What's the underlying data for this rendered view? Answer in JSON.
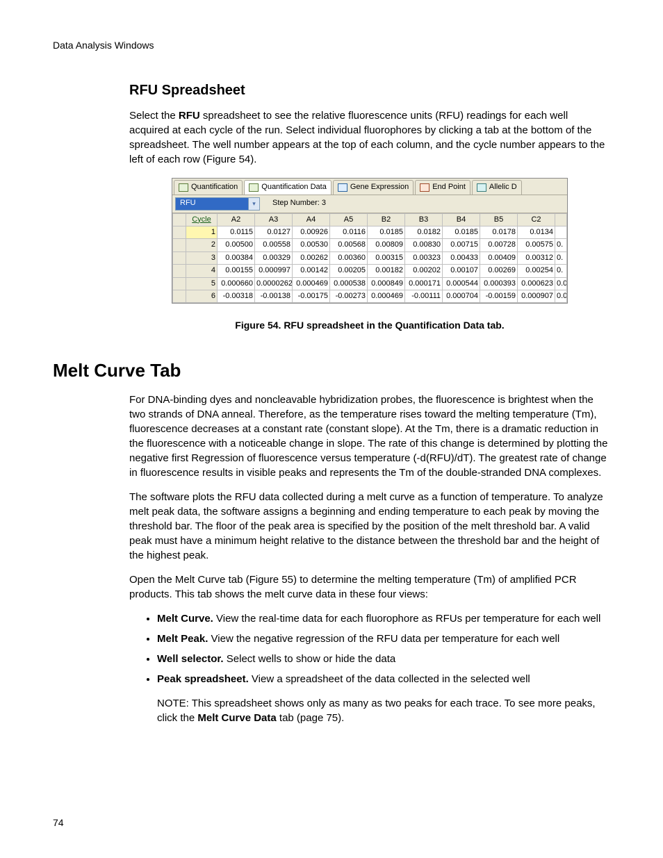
{
  "running_head": "Data Analysis Windows",
  "page_number": "74",
  "sec1_title": "RFU Spreadsheet",
  "sec1_p1_a": "Select the ",
  "sec1_p1_b": "RFU",
  "sec1_p1_c": " spreadsheet to see the relative fluorescence units (RFU) readings for each well acquired at each cycle of the run. Select individual fluorophores by clicking a tab at the bottom of the spreadsheet. The well number appears at the top of each column, and the cycle number appears to the left of each row (Figure 54).",
  "fig54_caption": "Figure 54. RFU spreadsheet in the Quantification Data tab.",
  "sec2_title": "Melt Curve Tab",
  "sec2_p1": "For DNA-binding dyes and noncleavable hybridization probes, the fluorescence is brightest when the two strands of DNA anneal. Therefore, as the temperature rises toward the melting temperature (Tm), fluorescence decreases at a constant rate (constant slope). At the Tm, there is a dramatic reduction in the fluorescence with a noticeable change in slope. The rate of this change is determined by plotting the negative first Regression of fluorescence versus temperature (-d(RFU)/dT). The greatest rate of change in fluorescence results in visible peaks and represents the Tm of the double-stranded DNA complexes.",
  "sec2_p2": "The software plots the RFU data collected during a melt curve as a function of temperature. To analyze melt peak data, the software assigns a beginning and ending temperature to each peak by moving the threshold bar. The floor of the peak area is specified by the position of the melt threshold bar. A valid peak must have a minimum height relative to the distance between the threshold bar and the height of the highest peak.",
  "sec2_p3": "Open the Melt Curve tab (Figure 55) to determine the melting temperature (Tm) of amplified PCR products. This tab shows the melt curve data in these four views:",
  "b1_head": "Melt Curve.",
  "b1_tail": " View the real-time data for each fluorophore as RFUs per temperature for each well",
  "b2_head": "Melt Peak.",
  "b2_tail": " View the negative regression of the RFU data per temperature for each well",
  "b3_head": "Well selector.",
  "b3_tail": " Select wells to show or hide the data",
  "b4_head": "Peak spreadsheet.",
  "b4_tail": " View a spreadsheet of the data collected in the selected well",
  "note_a": "NOTE: This spreadsheet shows only as many as two peaks for each trace. To see more peaks, click the ",
  "note_b": "Melt Curve Data",
  "note_c": " tab (page 75).",
  "screenshot": {
    "tabs": {
      "quantification": "Quantification",
      "quantification_data": "Quantification Data",
      "gene_expression": "Gene Expression",
      "end_point": "End Point",
      "allelic": "Allelic D"
    },
    "dropdown_value": "RFU",
    "step_label": "Step Number:   3",
    "table": {
      "corner_header": "Cycle",
      "columns": [
        "A2",
        "A3",
        "A4",
        "A5",
        "B2",
        "B3",
        "B4",
        "B5",
        "C2"
      ],
      "rows": [
        {
          "n": "1",
          "sel": true,
          "cells": [
            "0.0115",
            "0.0127",
            "0.00926",
            "0.0116",
            "0.0185",
            "0.0182",
            "0.0185",
            "0.0178",
            "0.0134"
          ],
          "tail": ""
        },
        {
          "n": "2",
          "sel": false,
          "cells": [
            "0.00500",
            "0.00558",
            "0.00530",
            "0.00568",
            "0.00809",
            "0.00830",
            "0.00715",
            "0.00728",
            "0.00575"
          ],
          "tail": "0."
        },
        {
          "n": "3",
          "sel": false,
          "cells": [
            "0.00384",
            "0.00329",
            "0.00262",
            "0.00360",
            "0.00315",
            "0.00323",
            "0.00433",
            "0.00409",
            "0.00312"
          ],
          "tail": "0."
        },
        {
          "n": "4",
          "sel": false,
          "cells": [
            "0.00155",
            "0.000997",
            "0.00142",
            "0.00205",
            "0.00182",
            "0.00202",
            "0.00107",
            "0.00269",
            "0.00254"
          ],
          "tail": "0."
        },
        {
          "n": "5",
          "sel": false,
          "cells": [
            "0.000660",
            "0.0000262",
            "0.000469",
            "0.000538",
            "0.000849",
            "0.000171",
            "0.000544",
            "0.000393",
            "0.000623"
          ],
          "tail": "0.0"
        },
        {
          "n": "6",
          "sel": false,
          "cells": [
            "-0.00318",
            "-0.00138",
            "-0.00175",
            "-0.00273",
            "0.000469",
            "-0.00111",
            "0.000704",
            "-0.00159",
            "0.000907"
          ],
          "tail": "0.0"
        }
      ]
    }
  }
}
